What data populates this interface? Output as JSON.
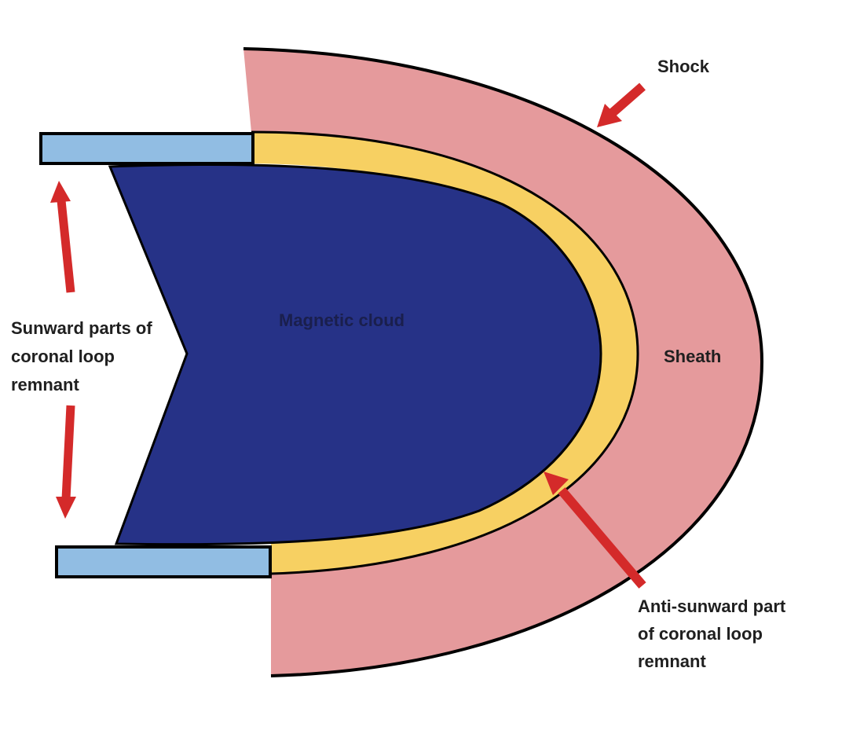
{
  "labels": {
    "shock": "Shock",
    "magnetic_cloud": "Magnetic cloud",
    "sheath": "Sheath",
    "sunward": [
      "Sunward parts of",
      "coronal loop",
      "remnant"
    ],
    "anti_sunward": [
      "Anti-sunward part",
      "of coronal loop",
      "remnant"
    ]
  },
  "colors": {
    "sheath": "#e59a9c",
    "loop_remnant": "#f7d062",
    "magnetic_cloud": "#263287",
    "legs": "#91bde3",
    "arrows": "#d42a2a",
    "outline": "#000000"
  }
}
